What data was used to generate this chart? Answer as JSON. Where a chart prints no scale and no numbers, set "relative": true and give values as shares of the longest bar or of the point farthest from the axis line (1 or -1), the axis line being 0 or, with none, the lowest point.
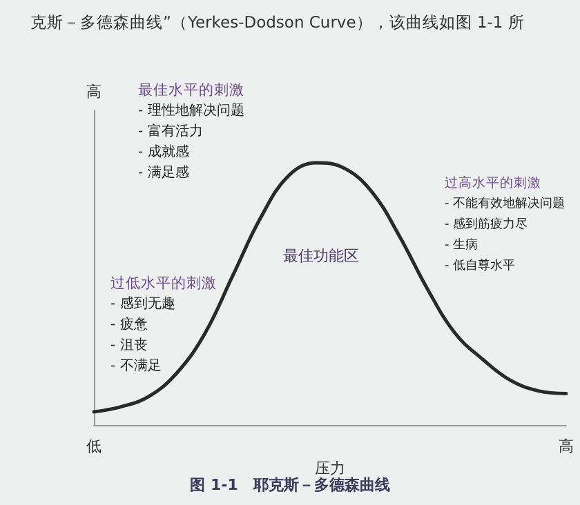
{
  "chart_data": {
    "type": "line",
    "relative": true,
    "xlabel": "压力",
    "ylabel": "高",
    "categories": [
      "低",
      null,
      null,
      null,
      null,
      null,
      null,
      null,
      null,
      null,
      null,
      null,
      null,
      null,
      null,
      null,
      null,
      "高"
    ],
    "series": [
      {
        "color": "#2a2a2a",
        "values": [
          0.05,
          0.07,
          0.11,
          0.2,
          0.35,
          0.57,
          0.79,
          0.95,
          1,
          0.98,
          0.89,
          0.72,
          0.52,
          0.35,
          0.25,
          0.17,
          0.13,
          0.12
        ]
      }
    ],
    "marker": "none",
    "line_style": "solid",
    "grid": false,
    "annotations": [
      "克斯－多德森曲线”（Yerkes-Dodson Curve），该曲线如图 1-1 所",
      "最佳水平的刺激\n- 理性地解决问题\n- 富有活力\n- 成就感\n- 满足感",
      "最佳功能区",
      "过低水平的刺激\n- 感到无趣\n- 疲惫\n- 沮丧\n- 不满足",
      "过高水平的刺激\n- 不能有效地解决问题\n- 感到筋疲力尽\n- 生病\n- 低自尊水平",
      "图 1-1　耶克斯－多德森曲线"
    ]
  }
}
